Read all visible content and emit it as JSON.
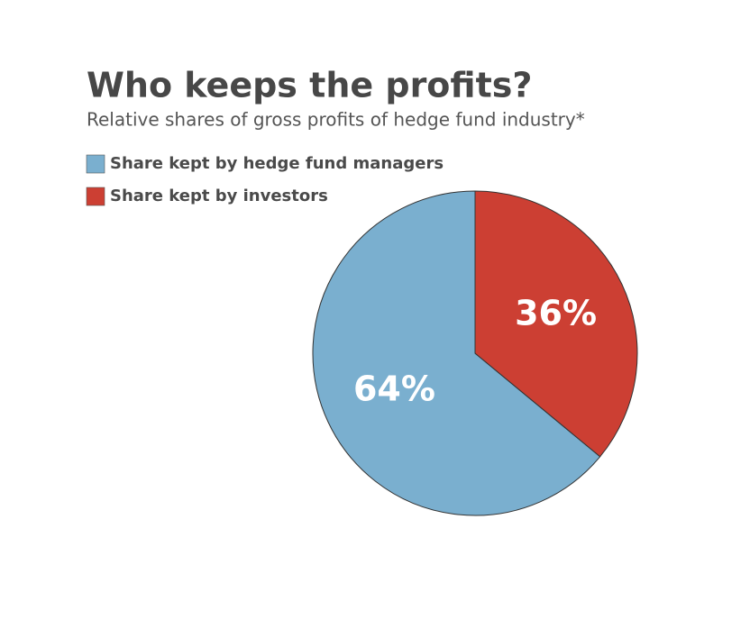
{
  "chart_data": {
    "type": "pie",
    "title": "Who keeps the profits?",
    "subtitle": "Relative shares of gross profits of hedge fund industry*",
    "categories": [
      "Share kept by hedge fund managers",
      "Share kept by investors"
    ],
    "values": [
      64,
      36
    ],
    "value_labels": [
      "64%",
      "36%"
    ],
    "colors": [
      "#7aafcf",
      "#cc3f33"
    ],
    "start": "top",
    "direction": "counterclockwise"
  }
}
